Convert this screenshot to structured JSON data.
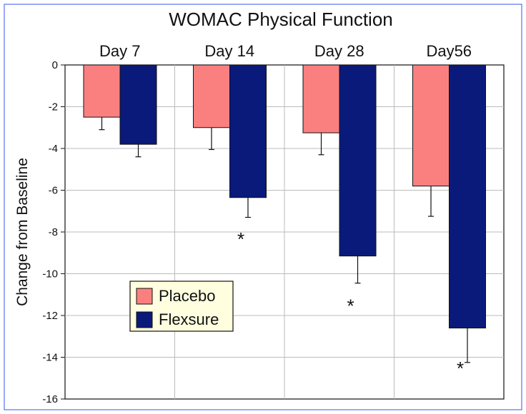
{
  "chart_data": {
    "type": "bar",
    "title": "WOMAC Physical Function",
    "xlabel": "",
    "ylabel": "Change from Baseline",
    "categories": [
      "Day 7",
      "Day 14",
      "Day 28",
      "Day56"
    ],
    "ylim": [
      -16,
      0
    ],
    "yticks": [
      0,
      -2,
      -4,
      -6,
      -8,
      -10,
      -12,
      -14,
      -16
    ],
    "grid": true,
    "series": [
      {
        "name": "Placebo",
        "color": "#FA8080",
        "values": [
          -2.5,
          -3.0,
          -3.25,
          -5.8
        ],
        "errors": [
          0.6,
          1.05,
          1.05,
          1.45
        ]
      },
      {
        "name": "Flexsure",
        "color": "#0A1A7A",
        "values": [
          -3.8,
          -6.35,
          -9.15,
          -12.6
        ],
        "errors": [
          0.6,
          0.95,
          1.3,
          1.65
        ]
      }
    ],
    "annotations": [
      {
        "text": "*",
        "category": "Day 14",
        "y": -8.3
      },
      {
        "text": "*",
        "category": "Day 28",
        "y": -11.5
      },
      {
        "text": "*",
        "category": "Day56",
        "y": -14.5
      }
    ],
    "legend_position": "center-left",
    "page_background": "#FFFFFF",
    "plot_background": "#FFFFFF",
    "frame_color": "#3355EE",
    "grid_color": "#BBBBBB"
  }
}
